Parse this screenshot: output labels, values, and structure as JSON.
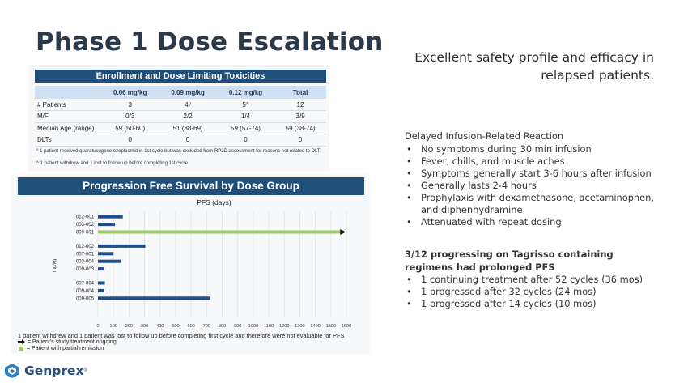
{
  "title": "Phase 1 Dose Escalation",
  "tagline": "Excellent safety profile and efficacy in relapsed patients.",
  "enrollment": {
    "header": "Enrollment and Dose Limiting Toxicities",
    "columns": [
      "",
      "0.06 mg/kg",
      "0.09 mg/kg",
      "0.12 mg/kg",
      "Total"
    ],
    "rows": [
      [
        "# Patients",
        "3",
        "4⁰",
        "5^",
        "12"
      ],
      [
        "M/F",
        "0/3",
        "2/2",
        "1/4",
        "3/9"
      ],
      [
        "Median Age (range)",
        "59 (50-60)",
        "51 (38-69)",
        "59 (57-74)",
        "59 (38-74)"
      ],
      [
        "DLTs",
        "0",
        "0",
        "0",
        "0"
      ]
    ],
    "footnote1": "⁰ 1 patient received quaratusugene ozeplasmid in 1st cycle but was excluded from RP2D assessment for reasons not related to DLT.",
    "footnote2": "^ 1 patient withdrew and 1 lost to follow up before completing 1st cycle"
  },
  "pfs": {
    "header": "Progression Free Survival by Dose Group",
    "chart_data": {
      "type": "bar",
      "title": "PFS (days)",
      "ylabel": "mg/kg",
      "xlim": [
        0,
        1600
      ],
      "xticks": [
        0,
        100,
        200,
        300,
        400,
        500,
        600,
        700,
        800,
        900,
        1000,
        1100,
        1200,
        1300,
        1400,
        1500,
        1600
      ],
      "groups": [
        {
          "patients": [
            {
              "id": "012-001",
              "days": 160,
              "ongoing": false,
              "partial_remission": false
            },
            {
              "id": "003-002",
              "days": 110,
              "ongoing": false,
              "partial_remission": false
            },
            {
              "id": "009-001",
              "days": 1560,
              "ongoing": true,
              "partial_remission": true
            }
          ]
        },
        {
          "patients": [
            {
              "id": "012-002",
              "days": 305,
              "ongoing": false,
              "partial_remission": false
            },
            {
              "id": "007-001",
              "days": 100,
              "ongoing": false,
              "partial_remission": false
            },
            {
              "id": "003-004",
              "days": 150,
              "ongoing": false,
              "partial_remission": false
            },
            {
              "id": "009-003",
              "days": 40,
              "ongoing": false,
              "partial_remission": false
            }
          ]
        },
        {
          "patients": [
            {
              "id": "007-004",
              "days": 45,
              "ongoing": false,
              "partial_remission": false
            },
            {
              "id": "009-004",
              "days": 40,
              "ongoing": false,
              "partial_remission": false
            },
            {
              "id": "009-005",
              "days": 725,
              "ongoing": false,
              "partial_remission": false
            }
          ]
        }
      ],
      "colors": {
        "bar": "#1f4e8c",
        "partial_remission": "#9dc96b",
        "arrow": "#111111"
      }
    },
    "note": "1 patient withdrew and 1 patient was lost to follow up before completing first cycle and therefore were not evaluable for PFS",
    "legend_ongoing": "= Patient's study treatment ongoing",
    "legend_partial": "= Patient with partial remission"
  },
  "reaction": {
    "heading": "Delayed Infusion-Related Reaction",
    "items": [
      "No symptoms during 30 min infusion",
      "Fever, chills, and muscle aches",
      "Symptoms generally start 3-6 hours after infusion",
      "Generally lasts 2-4 hours",
      "Prophylaxis with dexamethasone, acetaminophen, and diphenhydramine",
      "Attenuated with repeat dosing"
    ]
  },
  "tagrisso": {
    "heading": "3/12 progressing on Tagrisso containing regimens had prolonged PFS",
    "items": [
      "1 continuing treatment after 52 cycles (36 mos)",
      "1 progressed after 32 cycles (24 mos)",
      "1 progressed after 14 cycles (10 mos)"
    ]
  },
  "logo": {
    "name": "Genprex",
    "tm": "®",
    "icon": "genprex-logo-icon"
  }
}
